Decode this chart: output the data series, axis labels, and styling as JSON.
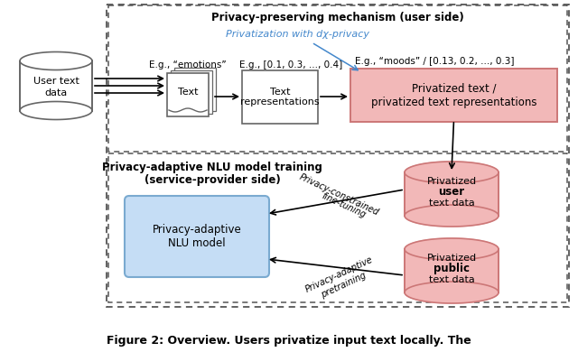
{
  "fig_width": 6.4,
  "fig_height": 3.9,
  "dpi": 100,
  "background": "#ffffff",
  "caption": "Figure 2: Overview. Users privatize input text locally. The",
  "top_section_title": "Privacy-preserving mechanism (user side)",
  "bottom_section_title1": "Privacy-adaptive NLU model training",
  "bottom_section_title2": "(service-provider side)",
  "privatization_label": "Privatization with dχ-privacy",
  "eg_emotions": "E.g., “emotions”",
  "eg_repr": "E.g., [0.1, 0.3, ..., 0.4]",
  "eg_moods": "E.g., “moods” / [0.13, 0.2, ..., 0.3]",
  "text_box_label": "Text",
  "text_repr_label": "Text\nrepresentations",
  "privatized_text_label": "Privatized text /\nprivatized text representations",
  "nlu_model_label": "Privacy-adaptive\nNLU model",
  "user_data_line1": "Privatized",
  "user_data_line2": "user",
  "user_data_line3": "text",
  "user_data_line4": "data",
  "public_data_line1": "Privatized",
  "public_data_line2": "public",
  "public_data_line3": "text",
  "public_data_line4": "data",
  "arrow_fine_tuning_1": "Privacy-constrained",
  "arrow_fine_tuning_2": "fine-tuning",
  "arrow_pretraining_1": "Privacy-adaptive",
  "arrow_pretraining_2": "pretraining",
  "color_pink_fill": "#f2b8b8",
  "color_pink_border": "#cc7777",
  "color_blue_fill": "#c5ddf5",
  "color_blue_border": "#7aaad0",
  "color_white_fill": "#ffffff",
  "color_gray_border": "#666666",
  "color_light_gray": "#dddddd",
  "color_cyan_text": "#4488cc",
  "color_black": "#000000",
  "color_dashed_border": "#555555"
}
